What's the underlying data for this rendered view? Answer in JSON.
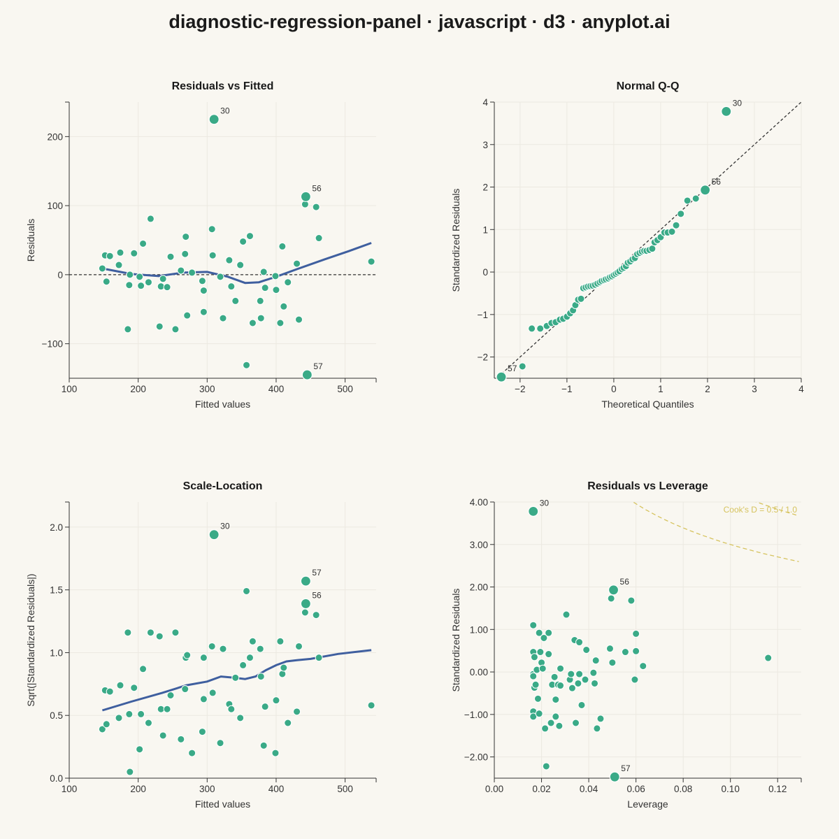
{
  "title": "diagnostic-regression-panel · javascript · d3 · anyplot.ai",
  "colors": {
    "point": "#3aaa87",
    "point_stroke": "#ffffff",
    "smooth": "#3f5f9f",
    "reference": "#333333",
    "cook": "#d6c35e",
    "grid": "#ece9e1"
  },
  "chart_data": [
    {
      "type": "scatter",
      "title": "Residuals vs Fitted",
      "xlabel": "Fitted values",
      "ylabel": "Residuals",
      "xlim": [
        100,
        545
      ],
      "ylim": [
        -150,
        250
      ],
      "xticks": [
        100,
        200,
        300,
        400,
        500
      ],
      "yticks": [
        -100,
        0,
        100,
        200
      ],
      "reference_y": 0,
      "points": [
        [
          148,
          9
        ],
        [
          152,
          28
        ],
        [
          154,
          -10
        ],
        [
          159,
          27
        ],
        [
          172,
          14
        ],
        [
          174,
          32
        ],
        [
          185,
          -79
        ],
        [
          187,
          -15
        ],
        [
          188,
          0
        ],
        [
          194,
          31
        ],
        [
          202,
          -3
        ],
        [
          204,
          -16
        ],
        [
          207,
          45
        ],
        [
          215,
          -11
        ],
        [
          218,
          81
        ],
        [
          231,
          -75
        ],
        [
          233,
          -17
        ],
        [
          236,
          -6
        ],
        [
          242,
          -18
        ],
        [
          247,
          26
        ],
        [
          254,
          -79
        ],
        [
          262,
          6
        ],
        [
          268,
          30
        ],
        [
          269,
          55
        ],
        [
          271,
          -59
        ],
        [
          278,
          3
        ],
        [
          293,
          -9
        ],
        [
          295,
          -23
        ],
        [
          295,
          -54
        ],
        [
          307,
          66
        ],
        [
          308,
          28
        ],
        [
          319,
          -3
        ],
        [
          323,
          -63
        ],
        [
          332,
          21
        ],
        [
          335,
          -17
        ],
        [
          341,
          -38
        ],
        [
          348,
          14
        ],
        [
          352,
          48
        ],
        [
          357,
          -131
        ],
        [
          362,
          56
        ],
        [
          366,
          -70
        ],
        [
          377,
          -38
        ],
        [
          378,
          -63
        ],
        [
          382,
          4
        ],
        [
          384,
          -19
        ],
        [
          399,
          -2
        ],
        [
          400,
          -22
        ],
        [
          406,
          -70
        ],
        [
          409,
          41
        ],
        [
          411,
          -46
        ],
        [
          417,
          -11
        ],
        [
          430,
          16
        ],
        [
          433,
          -65
        ],
        [
          442,
          102
        ],
        [
          458,
          98
        ],
        [
          462,
          53
        ],
        [
          538,
          19
        ]
      ],
      "highlights": [
        {
          "x": 310,
          "y": 225,
          "label": "30"
        },
        {
          "x": 443,
          "y": 113,
          "label": "56"
        },
        {
          "x": 445,
          "y": -145,
          "label": "57"
        }
      ],
      "smooth": [
        [
          148,
          9
        ],
        [
          190,
          1
        ],
        [
          230,
          -2
        ],
        [
          265,
          3
        ],
        [
          300,
          4
        ],
        [
          330,
          -3
        ],
        [
          355,
          -12
        ],
        [
          375,
          -11
        ],
        [
          400,
          -3
        ],
        [
          430,
          8
        ],
        [
          470,
          22
        ],
        [
          505,
          34
        ],
        [
          538,
          46
        ]
      ]
    },
    {
      "type": "scatter",
      "title": "Normal Q-Q",
      "xlabel": "Theoretical Quantiles",
      "ylabel": "Standardized Residuals",
      "xlim": [
        -2.55,
        4
      ],
      "ylim": [
        -2.5,
        4
      ],
      "xticks": [
        -2,
        -1,
        0,
        1,
        2,
        3,
        4
      ],
      "yticks": [
        -2,
        -1,
        0,
        1,
        2,
        3,
        4
      ],
      "reference_line": [
        [
          -2.55,
          -2.55
        ],
        [
          4,
          4
        ]
      ],
      "points": [
        [
          -1.95,
          -2.22
        ],
        [
          -1.75,
          -1.33
        ],
        [
          -1.57,
          -1.33
        ],
        [
          -1.43,
          -1.27
        ],
        [
          -1.33,
          -1.2
        ],
        [
          -1.24,
          -1.18
        ],
        [
          -1.15,
          -1.12
        ],
        [
          -1.08,
          -1.1
        ],
        [
          -1.0,
          -1.05
        ],
        [
          -0.93,
          -0.97
        ],
        [
          -0.87,
          -0.9
        ],
        [
          -0.82,
          -0.78
        ],
        [
          -0.76,
          -0.65
        ],
        [
          -0.7,
          -0.63
        ],
        [
          -0.65,
          -0.38
        ],
        [
          -0.6,
          -0.36
        ],
        [
          -0.55,
          -0.34
        ],
        [
          -0.5,
          -0.33
        ],
        [
          -0.45,
          -0.32
        ],
        [
          -0.4,
          -0.3
        ],
        [
          -0.35,
          -0.27
        ],
        [
          -0.3,
          -0.24
        ],
        [
          -0.26,
          -0.21
        ],
        [
          -0.21,
          -0.19
        ],
        [
          -0.17,
          -0.17
        ],
        [
          -0.12,
          -0.15
        ],
        [
          -0.08,
          -0.12
        ],
        [
          -0.04,
          -0.1
        ],
        [
          0.0,
          -0.07
        ],
        [
          0.04,
          -0.04
        ],
        [
          0.08,
          -0.01
        ],
        [
          0.12,
          0.02
        ],
        [
          0.17,
          0.07
        ],
        [
          0.21,
          0.1
        ],
        [
          0.26,
          0.14
        ],
        [
          0.3,
          0.22
        ],
        [
          0.35,
          0.25
        ],
        [
          0.4,
          0.3
        ],
        [
          0.45,
          0.33
        ],
        [
          0.5,
          0.42
        ],
        [
          0.55,
          0.45
        ],
        [
          0.6,
          0.48
        ],
        [
          0.65,
          0.5
        ],
        [
          0.7,
          0.5
        ],
        [
          0.76,
          0.52
        ],
        [
          0.82,
          0.55
        ],
        [
          0.87,
          0.7
        ],
        [
          0.93,
          0.75
        ],
        [
          1.0,
          0.82
        ],
        [
          1.08,
          0.93
        ],
        [
          1.15,
          0.93
        ],
        [
          1.24,
          0.95
        ],
        [
          1.33,
          1.1
        ],
        [
          1.43,
          1.37
        ],
        [
          1.57,
          1.68
        ],
        [
          1.75,
          1.73
        ]
      ],
      "highlights": [
        {
          "x": 2.4,
          "y": 3.78,
          "label": "30"
        },
        {
          "x": 1.95,
          "y": 1.93,
          "label": "56"
        },
        {
          "x": -2.4,
          "y": -2.47,
          "label": "57"
        }
      ]
    },
    {
      "type": "scatter",
      "title": "Scale-Location",
      "xlabel": "Fitted values",
      "ylabel": "Sqrt(|Standardized Residuals|)",
      "xlim": [
        100,
        545
      ],
      "ylim": [
        0,
        2.2
      ],
      "xticks": [
        100,
        200,
        300,
        400,
        500
      ],
      "yticks": [
        0.0,
        0.5,
        1.0,
        1.5,
        2.0
      ],
      "points": [
        [
          148,
          0.39
        ],
        [
          152,
          0.7
        ],
        [
          154,
          0.43
        ],
        [
          159,
          0.69
        ],
        [
          172,
          0.48
        ],
        [
          174,
          0.74
        ],
        [
          185,
          1.16
        ],
        [
          187,
          0.51
        ],
        [
          188,
          0.05
        ],
        [
          194,
          0.72
        ],
        [
          202,
          0.23
        ],
        [
          204,
          0.51
        ],
        [
          207,
          0.87
        ],
        [
          215,
          0.44
        ],
        [
          218,
          1.16
        ],
        [
          231,
          1.13
        ],
        [
          233,
          0.55
        ],
        [
          236,
          0.34
        ],
        [
          242,
          0.55
        ],
        [
          247,
          0.66
        ],
        [
          254,
          1.16
        ],
        [
          262,
          0.31
        ],
        [
          268,
          0.71
        ],
        [
          269,
          0.96
        ],
        [
          271,
          0.98
        ],
        [
          278,
          0.2
        ],
        [
          293,
          0.37
        ],
        [
          295,
          0.63
        ],
        [
          295,
          0.96
        ],
        [
          307,
          1.05
        ],
        [
          308,
          0.68
        ],
        [
          319,
          0.28
        ],
        [
          323,
          1.03
        ],
        [
          332,
          0.59
        ],
        [
          335,
          0.55
        ],
        [
          341,
          0.8
        ],
        [
          348,
          0.48
        ],
        [
          352,
          0.9
        ],
        [
          357,
          1.49
        ],
        [
          362,
          0.96
        ],
        [
          366,
          1.09
        ],
        [
          377,
          1.03
        ],
        [
          378,
          0.81
        ],
        [
          382,
          0.26
        ],
        [
          384,
          0.57
        ],
        [
          399,
          0.2
        ],
        [
          400,
          0.62
        ],
        [
          406,
          1.09
        ],
        [
          409,
          0.83
        ],
        [
          411,
          0.88
        ],
        [
          417,
          0.44
        ],
        [
          430,
          0.53
        ],
        [
          433,
          1.05
        ],
        [
          442,
          1.32
        ],
        [
          458,
          1.3
        ],
        [
          462,
          0.96
        ],
        [
          538,
          0.58
        ]
      ],
      "highlights": [
        {
          "x": 310,
          "y": 1.94,
          "label": "30"
        },
        {
          "x": 443,
          "y": 1.57,
          "label": "57"
        },
        {
          "x": 443,
          "y": 1.39,
          "label": "56"
        }
      ],
      "smooth": [
        [
          148,
          0.54
        ],
        [
          190,
          0.61
        ],
        [
          235,
          0.68
        ],
        [
          270,
          0.74
        ],
        [
          300,
          0.77
        ],
        [
          320,
          0.81
        ],
        [
          340,
          0.8
        ],
        [
          355,
          0.79
        ],
        [
          370,
          0.81
        ],
        [
          385,
          0.86
        ],
        [
          400,
          0.9
        ],
        [
          415,
          0.93
        ],
        [
          430,
          0.94
        ],
        [
          450,
          0.95
        ],
        [
          490,
          0.99
        ],
        [
          538,
          1.02
        ]
      ]
    },
    {
      "type": "scatter",
      "title": "Residuals vs Leverage",
      "xlabel": "Leverage",
      "ylabel": "Standardized Residuals",
      "xlim": [
        0,
        0.13
      ],
      "ylim": [
        -2.5,
        4
      ],
      "xticks": [
        0.0,
        0.02,
        0.04,
        0.06,
        0.08,
        0.1,
        0.12
      ],
      "yticks": [
        -2,
        -1,
        0,
        1,
        2,
        3,
        4
      ],
      "cook_label": "Cook's D = 0.5 / 1.0",
      "points": [
        [
          0.0165,
          1.1
        ],
        [
          0.0165,
          0.47
        ],
        [
          0.0165,
          -0.05
        ],
        [
          0.0165,
          -0.1
        ],
        [
          0.0165,
          -0.93
        ],
        [
          0.0165,
          -1.05
        ],
        [
          0.017,
          0.35
        ],
        [
          0.017,
          -0.37
        ],
        [
          0.0175,
          -0.3
        ],
        [
          0.018,
          0.05
        ],
        [
          0.0185,
          -0.63
        ],
        [
          0.019,
          -0.98
        ],
        [
          0.019,
          0.92
        ],
        [
          0.0195,
          0.47
        ],
        [
          0.02,
          0.22
        ],
        [
          0.0205,
          0.08
        ],
        [
          0.021,
          0.8
        ],
        [
          0.0215,
          -1.33
        ],
        [
          0.022,
          -2.22
        ],
        [
          0.023,
          0.92
        ],
        [
          0.023,
          0.42
        ],
        [
          0.024,
          -1.2
        ],
        [
          0.0245,
          -0.3
        ],
        [
          0.0255,
          -0.12
        ],
        [
          0.026,
          -0.65
        ],
        [
          0.026,
          -1.05
        ],
        [
          0.027,
          -0.3
        ],
        [
          0.0275,
          -1.27
        ],
        [
          0.028,
          0.08
        ],
        [
          0.028,
          -0.32
        ],
        [
          0.0305,
          1.35
        ],
        [
          0.032,
          -0.18
        ],
        [
          0.0325,
          -0.05
        ],
        [
          0.033,
          -0.38
        ],
        [
          0.034,
          0.75
        ],
        [
          0.0345,
          -1.2
        ],
        [
          0.0355,
          -0.27
        ],
        [
          0.036,
          0.7
        ],
        [
          0.036,
          -0.05
        ],
        [
          0.037,
          -0.78
        ],
        [
          0.0385,
          -0.18
        ],
        [
          0.039,
          0.52
        ],
        [
          0.042,
          -0.02
        ],
        [
          0.0425,
          -0.27
        ],
        [
          0.043,
          0.27
        ],
        [
          0.0435,
          -1.33
        ],
        [
          0.045,
          -1.1
        ],
        [
          0.049,
          0.55
        ],
        [
          0.0495,
          1.73
        ],
        [
          0.05,
          0.22
        ],
        [
          0.0555,
          0.47
        ],
        [
          0.058,
          1.68
        ],
        [
          0.0595,
          -0.18
        ],
        [
          0.06,
          0.9
        ],
        [
          0.06,
          0.49
        ],
        [
          0.063,
          0.14
        ],
        [
          0.116,
          0.33
        ]
      ],
      "highlights": [
        {
          "x": 0.0165,
          "y": 3.78,
          "label": "30"
        },
        {
          "x": 0.0505,
          "y": 1.93,
          "label": "56"
        },
        {
          "x": 0.051,
          "y": -2.47,
          "label": "57"
        }
      ]
    }
  ]
}
